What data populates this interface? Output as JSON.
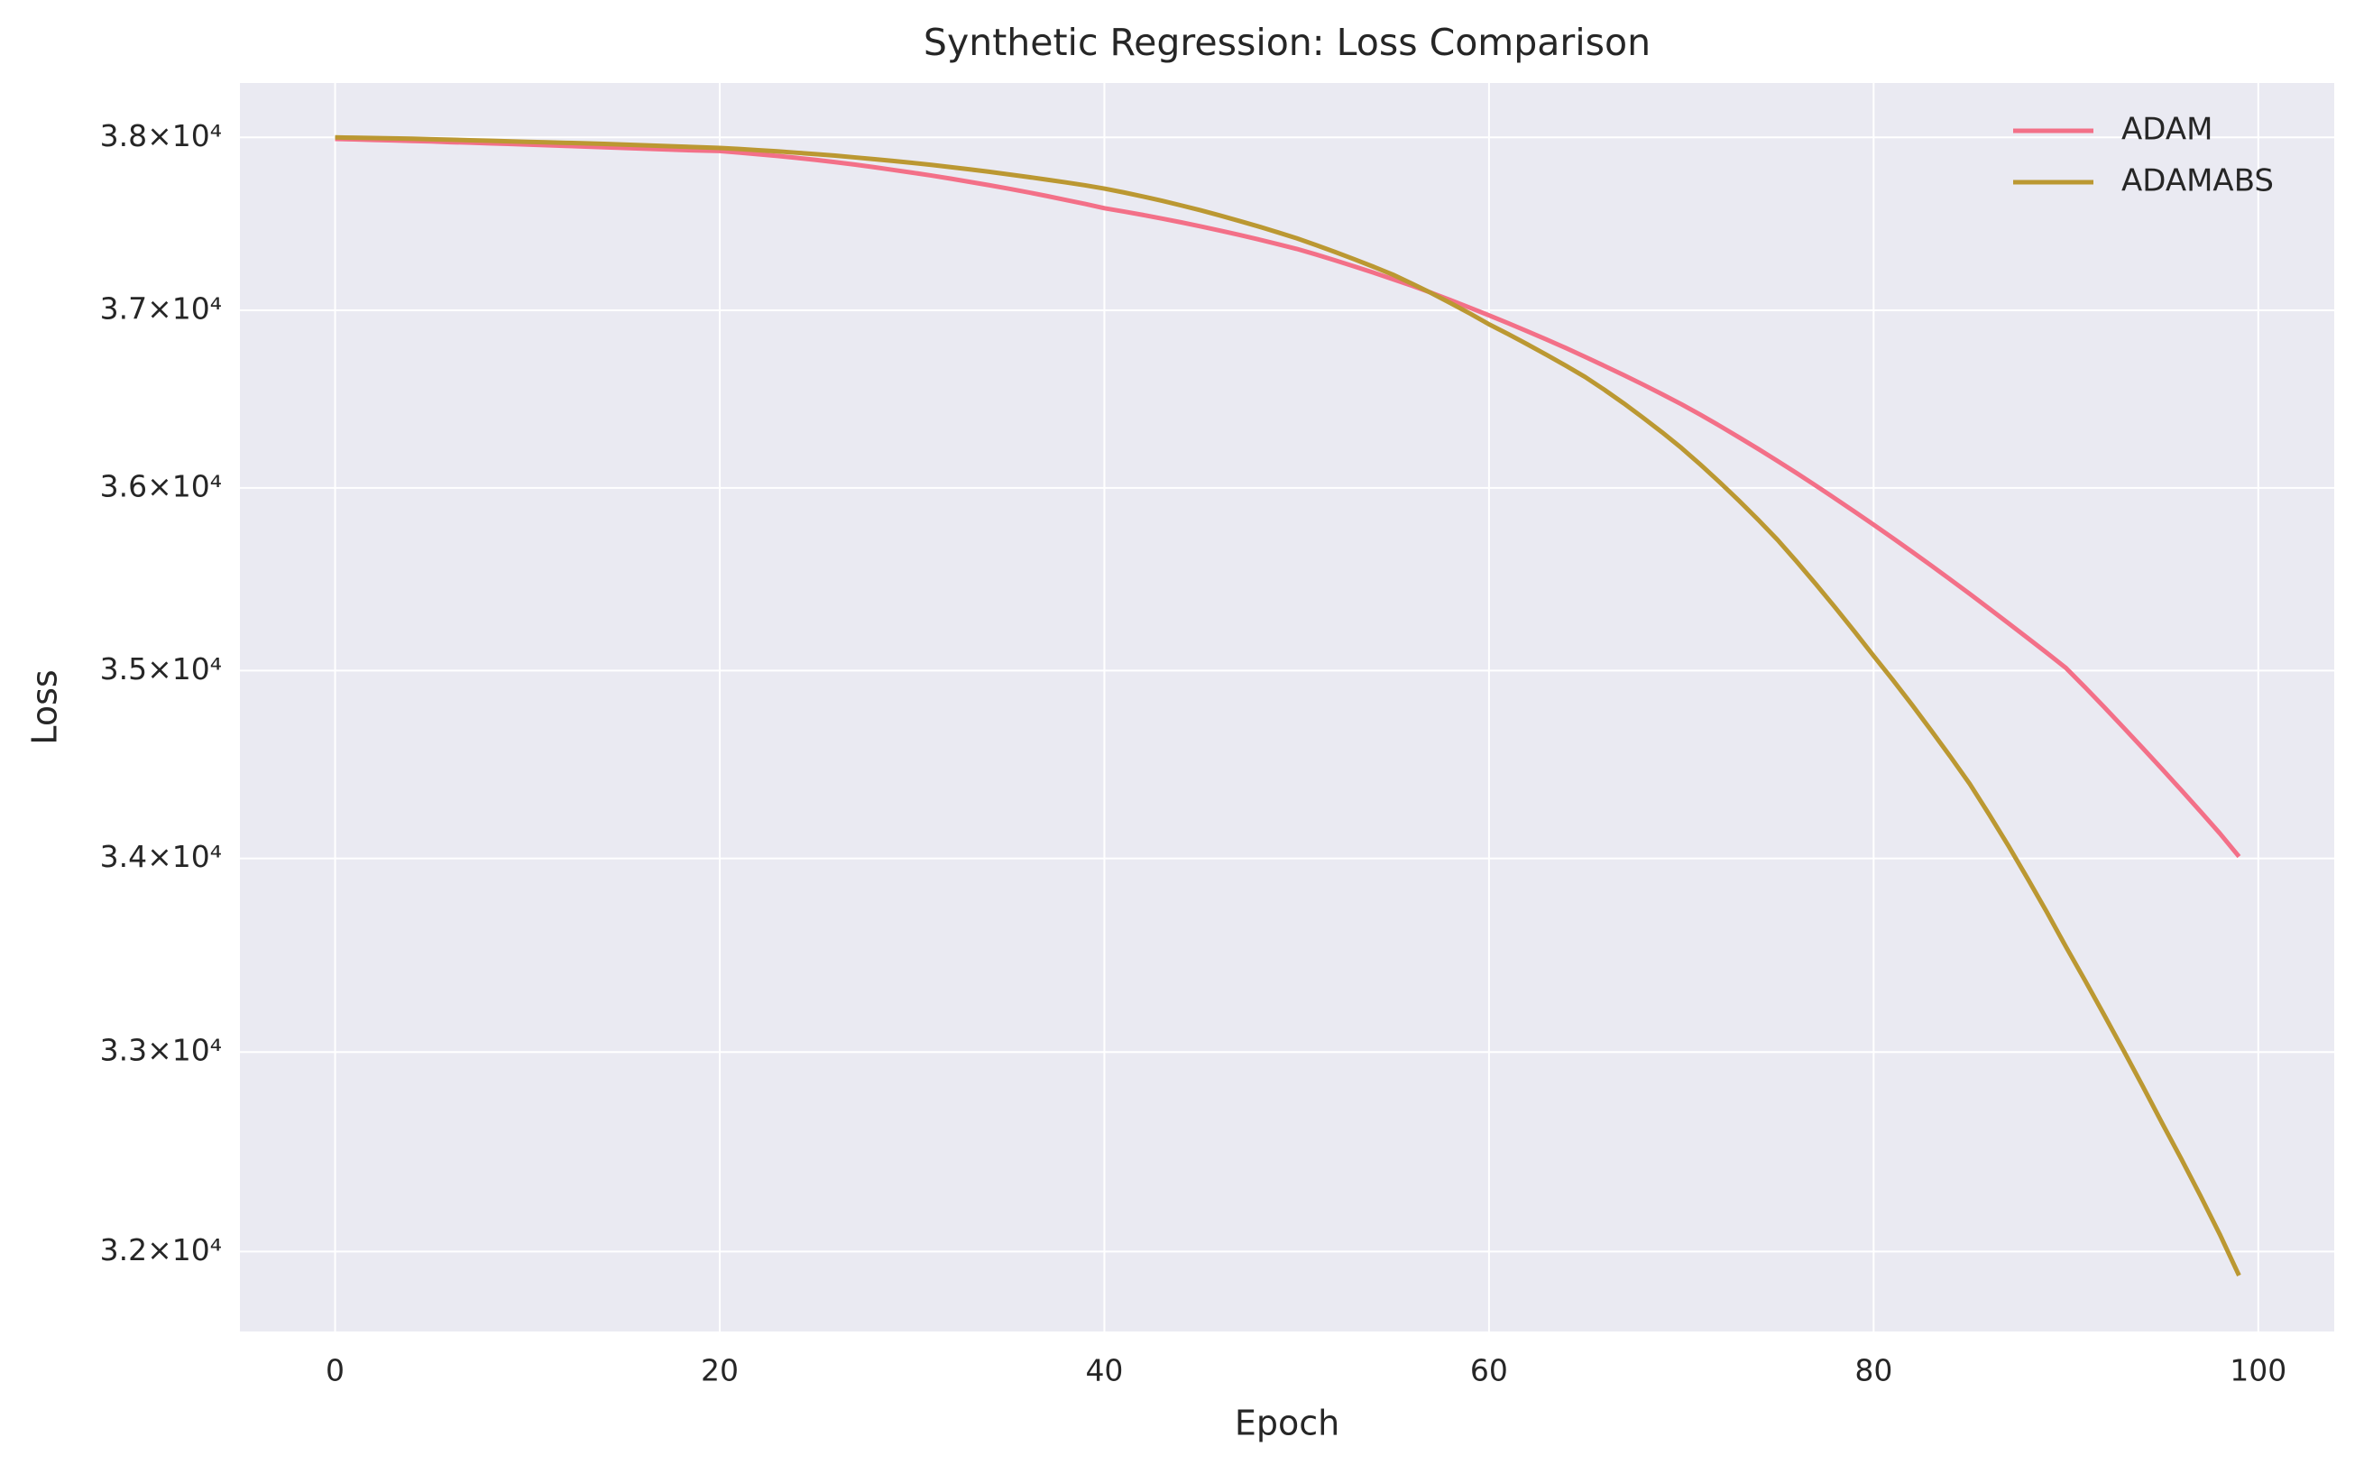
{
  "chart_data": {
    "type": "line",
    "title": "Synthetic Regression: Loss Comparison",
    "xlabel": "Epoch",
    "ylabel": "Loss",
    "yscale": "log",
    "grid": true,
    "legend": "upper right",
    "x": [
      0,
      1,
      2,
      3,
      4,
      5,
      6,
      7,
      8,
      9,
      10,
      11,
      12,
      13,
      14,
      15,
      16,
      17,
      18,
      19,
      20,
      21,
      22,
      23,
      24,
      25,
      26,
      27,
      28,
      29,
      30,
      31,
      32,
      33,
      34,
      35,
      36,
      37,
      38,
      39,
      40,
      41,
      42,
      43,
      44,
      45,
      46,
      47,
      48,
      49,
      50,
      51,
      52,
      53,
      54,
      55,
      56,
      57,
      58,
      59,
      60,
      61,
      62,
      63,
      64,
      65,
      66,
      67,
      68,
      69,
      70,
      71,
      72,
      73,
      74,
      75,
      76,
      77,
      78,
      79,
      80,
      81,
      82,
      83,
      84,
      85,
      86,
      87,
      88,
      89,
      90,
      91,
      92,
      93,
      94,
      95,
      96,
      97,
      98,
      99
    ],
    "series": [
      {
        "name": "ADAM",
        "color": "#f37088",
        "values": [
          37991,
          37988,
          37985,
          37982,
          37979,
          37976,
          37972,
          37969,
          37965,
          37962,
          37958,
          37954,
          37950,
          37946,
          37942,
          37938,
          37934,
          37930,
          37926,
          37923,
          37920,
          37911,
          37901,
          37891,
          37880,
          37868,
          37855,
          37841,
          37826,
          37810,
          37794,
          37777,
          37759,
          37740,
          37721,
          37701,
          37680,
          37658,
          37635,
          37612,
          37587,
          37568,
          37548,
          37527,
          37505,
          37482,
          37458,
          37433,
          37407,
          37380,
          37352,
          37320,
          37286,
          37251,
          37215,
          37178,
          37140,
          37100,
          37058,
          37015,
          36971,
          36926,
          36880,
          36833,
          36785,
          36735,
          36684,
          36632,
          36579,
          36524,
          36468,
          36408,
          36346,
          36282,
          36217,
          36150,
          36082,
          36012,
          35941,
          35869,
          35796,
          35722,
          35647,
          35571,
          35494,
          35416,
          35337,
          35257,
          35177,
          35096,
          35014,
          34909,
          34802,
          34693,
          34583,
          34472,
          34360,
          34247,
          34132,
          34010
        ]
      },
      {
        "name": "ADAMABS",
        "color": "#bb9832",
        "values": [
          38000,
          37998,
          37996,
          37994,
          37992,
          37989,
          37986,
          37983,
          37980,
          37977,
          37974,
          37971,
          37968,
          37965,
          37962,
          37958,
          37954,
          37950,
          37946,
          37942,
          37938,
          37932,
          37925,
          37918,
          37910,
          37902,
          37893,
          37883,
          37873,
          37862,
          37851,
          37839,
          37826,
          37813,
          37799,
          37784,
          37769,
          37753,
          37737,
          37720,
          37701,
          37679,
          37655,
          37630,
          37603,
          37575,
          37545,
          37514,
          37482,
          37448,
          37413,
          37374,
          37334,
          37292,
          37249,
          37204,
          37152,
          37098,
          37041,
          36982,
          36920,
          36864,
          36806,
          36746,
          36685,
          36621,
          36549,
          36473,
          36393,
          36310,
          36223,
          36129,
          36031,
          35929,
          35823,
          35713,
          35593,
          35469,
          35342,
          35212,
          35079,
          34949,
          34815,
          34677,
          34537,
          34393,
          34233,
          34068,
          33896,
          33721,
          33540,
          33365,
          33187,
          33007,
          32825,
          32640,
          32460,
          32275,
          32085,
          31882
        ]
      }
    ],
    "xlim": [
      -4.95,
      103.95
    ],
    "xticks": [
      0,
      20,
      40,
      60,
      80,
      100
    ],
    "ylim": [
      31608,
      38320
    ],
    "yticks": [
      {
        "value": 32000,
        "label": "3.2×10⁴"
      },
      {
        "value": 33000,
        "label": "3.3×10⁴"
      },
      {
        "value": 34000,
        "label": "3.4×10⁴"
      },
      {
        "value": 35000,
        "label": "3.5×10⁴"
      },
      {
        "value": 36000,
        "label": "3.6×10⁴"
      },
      {
        "value": 37000,
        "label": "3.7×10⁴"
      },
      {
        "value": 38000,
        "label": "3.8×10⁴"
      }
    ]
  }
}
